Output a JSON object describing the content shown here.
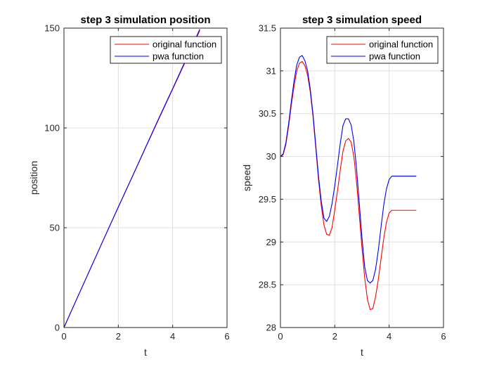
{
  "chart_data": [
    {
      "type": "line",
      "title": "step 3 simulation position",
      "xlabel": "t",
      "ylabel": "position",
      "xlim": [
        0,
        6
      ],
      "ylim": [
        0,
        150
      ],
      "xticks": [
        0,
        2,
        4,
        6
      ],
      "yticks": [
        0,
        50,
        100,
        150
      ],
      "grid": true,
      "legend_position": "top-right",
      "series": [
        {
          "name": "original function",
          "color": "#ff0000",
          "x": [
            0,
            0.5,
            1,
            1.5,
            2,
            2.5,
            3,
            3.5,
            4,
            4.5,
            5
          ],
          "y": [
            0,
            15.2,
            30.3,
            45.4,
            60.3,
            75.1,
            90.0,
            104.8,
            119.4,
            134.1,
            148.8
          ]
        },
        {
          "name": "pwa function",
          "color": "#0000ff",
          "x": [
            0,
            0.5,
            1,
            1.5,
            2,
            2.5,
            3,
            3.5,
            4,
            4.5,
            5
          ],
          "y": [
            0,
            15.2,
            30.3,
            45.4,
            60.4,
            75.2,
            90.2,
            105.1,
            119.7,
            134.6,
            149.5
          ]
        }
      ]
    },
    {
      "type": "line",
      "title": "step 3 simulation speed",
      "xlabel": "t",
      "ylabel": "speed",
      "xlim": [
        0,
        6
      ],
      "ylim": [
        28,
        31.5
      ],
      "xticks": [
        0,
        2,
        4,
        6
      ],
      "yticks": [
        28,
        28.5,
        29,
        29.5,
        30,
        30.5,
        31,
        31.5
      ],
      "grid": true,
      "legend_position": "top-right",
      "series": [
        {
          "name": "original function",
          "color": "#ff0000",
          "x": [
            0,
            0.1,
            0.2,
            0.3,
            0.4,
            0.5,
            0.6,
            0.7,
            0.8,
            0.9,
            1.0,
            1.1,
            1.2,
            1.3,
            1.4,
            1.5,
            1.6,
            1.7,
            1.8,
            1.9,
            2.0,
            2.1,
            2.2,
            2.3,
            2.4,
            2.5,
            2.6,
            2.7,
            2.8,
            2.9,
            3.0,
            3.1,
            3.2,
            3.3,
            3.4,
            3.5,
            3.6,
            3.7,
            3.8,
            3.9,
            4.0,
            4.1,
            4.2,
            4.3,
            4.4,
            4.5,
            4.6,
            4.7,
            4.8,
            4.9,
            5.0
          ],
          "y": [
            30.0,
            30.02,
            30.14,
            30.35,
            30.6,
            30.82,
            31.0,
            31.09,
            31.11,
            31.06,
            30.95,
            30.75,
            30.46,
            30.1,
            29.73,
            29.43,
            29.2,
            29.09,
            29.08,
            29.17,
            29.38,
            29.6,
            29.84,
            30.06,
            30.18,
            30.21,
            30.17,
            30.0,
            29.7,
            29.32,
            28.93,
            28.58,
            28.33,
            28.21,
            28.22,
            28.36,
            28.56,
            28.8,
            29.04,
            29.23,
            29.34,
            29.37,
            29.37,
            29.37,
            29.37,
            29.37,
            29.37,
            29.37,
            29.37,
            29.37,
            29.37
          ]
        },
        {
          "name": "pwa function",
          "color": "#0000ff",
          "x": [
            0,
            0.1,
            0.2,
            0.3,
            0.4,
            0.5,
            0.6,
            0.7,
            0.8,
            0.9,
            1.0,
            1.1,
            1.2,
            1.3,
            1.4,
            1.5,
            1.6,
            1.7,
            1.8,
            1.9,
            2.0,
            2.1,
            2.2,
            2.3,
            2.4,
            2.5,
            2.6,
            2.7,
            2.8,
            2.9,
            3.0,
            3.1,
            3.2,
            3.3,
            3.4,
            3.5,
            3.6,
            3.7,
            3.8,
            3.9,
            4.0,
            4.1,
            4.2,
            4.3,
            4.4,
            4.5,
            4.6,
            4.7,
            4.8,
            4.9,
            5.0
          ],
          "y": [
            30.0,
            30.03,
            30.16,
            30.38,
            30.64,
            30.88,
            31.07,
            31.16,
            31.18,
            31.12,
            31.0,
            30.78,
            30.49,
            30.13,
            29.77,
            29.48,
            29.28,
            29.24,
            29.3,
            29.45,
            29.66,
            29.9,
            30.15,
            30.36,
            30.44,
            30.44,
            30.37,
            30.18,
            29.86,
            29.46,
            29.05,
            28.71,
            28.55,
            28.52,
            28.55,
            28.68,
            28.9,
            29.17,
            29.43,
            29.62,
            29.73,
            29.77,
            29.77,
            29.77,
            29.77,
            29.77,
            29.77,
            29.77,
            29.77,
            29.77,
            29.77
          ]
        }
      ]
    }
  ]
}
